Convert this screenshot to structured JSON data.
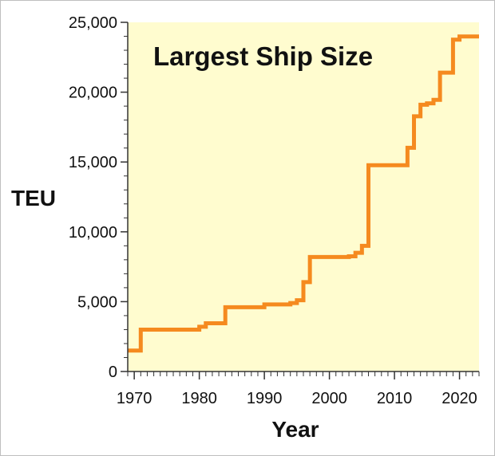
{
  "chart_data": {
    "type": "line",
    "step": true,
    "title": "Largest Ship Size",
    "xlabel": "Year",
    "ylabel": "TEU",
    "xlim": [
      1969,
      2023
    ],
    "ylim": [
      0,
      25000
    ],
    "x_ticks": [
      1970,
      1980,
      1990,
      2000,
      2010,
      2020
    ],
    "y_ticks": [
      0,
      5000,
      10000,
      15000,
      20000,
      25000
    ],
    "y_tick_labels": [
      "0",
      "5,000",
      "10,000",
      "15,000",
      "20,000",
      "25,000"
    ],
    "series": [
      {
        "name": "Largest Ship Size",
        "color": "#f58a1f",
        "x": [
          1969,
          1971,
          1980,
          1981,
          1984,
          1990,
          1994,
          1995,
          1996,
          1997,
          2003,
          2004,
          2005,
          2006,
          2012,
          2013,
          2014,
          2015,
          2016,
          2017,
          2019,
          2020,
          2023
        ],
        "y": [
          1500,
          3000,
          3200,
          3450,
          4600,
          4800,
          4900,
          5100,
          6400,
          8200,
          8250,
          8500,
          9000,
          14770,
          16020,
          18270,
          19100,
          19200,
          19450,
          21400,
          23760,
          23990,
          23990
        ]
      }
    ],
    "background_color": "#fffccf",
    "axis_color": "#333333",
    "grid": false
  }
}
